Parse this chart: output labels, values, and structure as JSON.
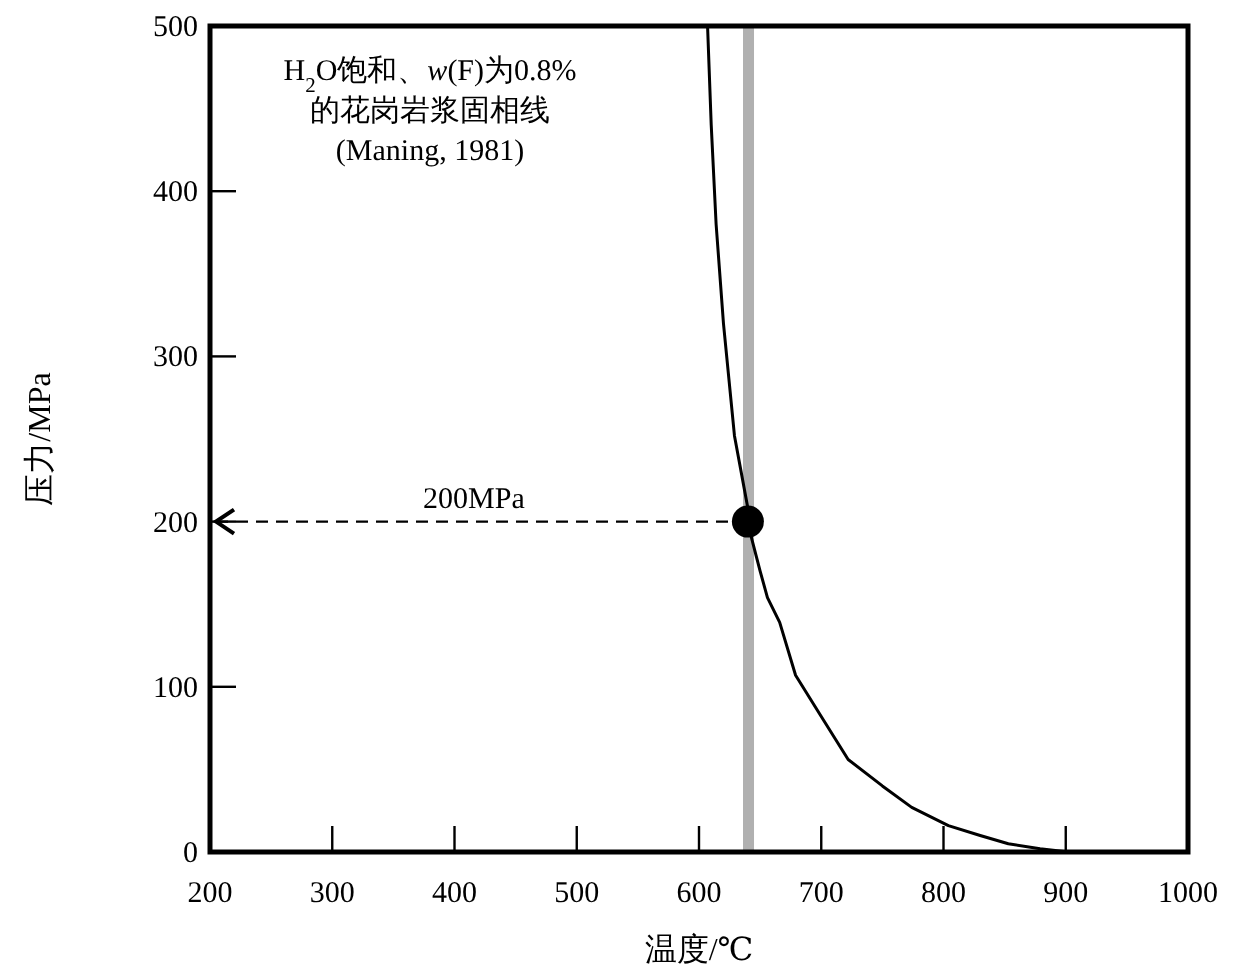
{
  "chart_data": {
    "type": "line",
    "xlabel": "温度/℃",
    "ylabel": "压力/MPa",
    "xlim": [
      200,
      1000
    ],
    "ylim": [
      0,
      500
    ],
    "xticks": [
      200,
      300,
      400,
      500,
      600,
      700,
      800,
      900,
      1000
    ],
    "yticks": [
      0,
      100,
      200,
      300,
      400,
      500
    ],
    "marker": "none",
    "line_style": "solid",
    "series": [
      {
        "color": "#000000",
        "x": [
          607,
          610,
          614,
          620,
          629,
          640,
          643,
          650,
          656,
          666,
          679,
          700,
          722,
          750,
          774,
          804,
          830,
          853,
          879,
          902
        ],
        "values": [
          500,
          440,
          380,
          320,
          252,
          208,
          190,
          170,
          154,
          139,
          107,
          82,
          56,
          40,
          27,
          16,
          10,
          5,
          2,
          0
        ]
      },
      {
        "type": "scatter",
        "marker": "circle",
        "color": "#000000",
        "x": [
          640
        ],
        "values": [
          200
        ]
      }
    ],
    "bands": [
      {
        "axis": "x",
        "from": 636,
        "to": 645,
        "color": "#b0b0b0"
      }
    ],
    "ref_lines": [
      {
        "axis": "y",
        "value": 200,
        "label": "200MPa",
        "line_style": "dashed",
        "color": "#000000"
      }
    ],
    "annotations": [
      "H$_{2}$O饱和、*w*(F)为0.8%",
      "的花岗岩浆固相线",
      "(Maning, 1981)"
    ]
  }
}
